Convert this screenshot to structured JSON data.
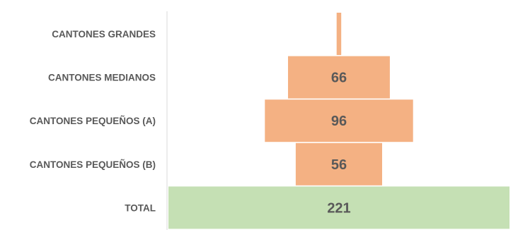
{
  "chart_data": {
    "type": "bar",
    "title": "",
    "xlabel": "",
    "ylabel": "",
    "categories": [
      "CANTONES GRANDES",
      "CANTONES MEDIANOS",
      "CANTONES PEQUEÑOS (A)",
      "CANTONES PEQUEÑOS (B)",
      "TOTAL"
    ],
    "values": [
      3,
      66,
      96,
      56,
      221
    ],
    "value_labels": [
      "",
      "66",
      "96",
      "56",
      "221"
    ],
    "colors": [
      "#F4B183",
      "#F4B183",
      "#F4B183",
      "#F4B183",
      "#C5E0B4"
    ],
    "grid": false,
    "legend": "none"
  }
}
